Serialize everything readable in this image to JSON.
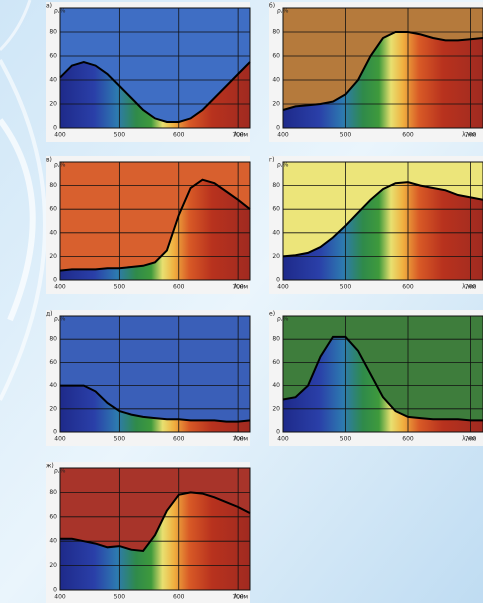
{
  "chart_data": [
    {
      "type": "line",
      "title": "а)",
      "ylabel": "ρ,%",
      "xlabel": "λ,нм",
      "background": "#3f6ec4",
      "color": "#000000",
      "x": [
        400,
        420,
        440,
        460,
        480,
        500,
        520,
        540,
        560,
        580,
        600,
        620,
        640,
        660,
        680,
        700,
        720
      ],
      "values": [
        42,
        52,
        55,
        52,
        45,
        35,
        25,
        15,
        8,
        5,
        5,
        8,
        15,
        25,
        35,
        45,
        55
      ],
      "xlim": [
        400,
        720
      ],
      "ylim": [
        0,
        100
      ],
      "xticks": [
        400,
        500,
        600,
        700
      ],
      "yticks": [
        0,
        20,
        40,
        60,
        80
      ],
      "grid": true
    },
    {
      "type": "line",
      "title": "б)",
      "ylabel": "ρ,%",
      "xlabel": "λ,нм",
      "background": "#b57a3c",
      "color": "#000000",
      "x": [
        400,
        420,
        440,
        460,
        480,
        500,
        520,
        540,
        560,
        580,
        600,
        620,
        640,
        660,
        680,
        700,
        720
      ],
      "values": [
        15,
        18,
        19,
        20,
        22,
        28,
        40,
        60,
        75,
        80,
        80,
        78,
        75,
        73,
        73,
        74,
        75
      ],
      "xlim": [
        400,
        720
      ],
      "ylim": [
        0,
        100
      ],
      "xticks": [
        400,
        500,
        600,
        700
      ],
      "yticks": [
        0,
        20,
        40,
        60,
        80
      ],
      "grid": true
    },
    {
      "type": "line",
      "title": "в)",
      "ylabel": "ρ,%",
      "xlabel": "λ,нм",
      "background": "#d8602e",
      "color": "#000000",
      "x": [
        400,
        420,
        440,
        460,
        480,
        500,
        520,
        540,
        560,
        580,
        600,
        620,
        640,
        660,
        680,
        700,
        720
      ],
      "values": [
        8,
        9,
        9,
        9,
        10,
        10,
        11,
        12,
        15,
        25,
        55,
        78,
        85,
        82,
        75,
        68,
        60
      ],
      "xlim": [
        400,
        720
      ],
      "ylim": [
        0,
        100
      ],
      "xticks": [
        400,
        500,
        600,
        700
      ],
      "yticks": [
        0,
        20,
        40,
        60,
        80
      ],
      "grid": true
    },
    {
      "type": "line",
      "title": "г)",
      "ylabel": "ρ,%",
      "xlabel": "λ,нм",
      "background": "#ece57a",
      "color": "#000000",
      "x": [
        400,
        420,
        440,
        460,
        480,
        500,
        520,
        540,
        560,
        580,
        600,
        620,
        640,
        660,
        680,
        700,
        720
      ],
      "values": [
        20,
        21,
        23,
        28,
        36,
        46,
        57,
        68,
        77,
        82,
        83,
        80,
        78,
        76,
        72,
        70,
        68
      ],
      "xlim": [
        400,
        720
      ],
      "ylim": [
        0,
        100
      ],
      "xticks": [
        400,
        500,
        600,
        700
      ],
      "yticks": [
        0,
        20,
        40,
        60,
        80
      ],
      "grid": true
    },
    {
      "type": "line",
      "title": "д)",
      "ylabel": "ρ,%",
      "xlabel": "λ,нм",
      "background": "#3a5fb8",
      "color": "#000000",
      "x": [
        400,
        420,
        440,
        460,
        480,
        500,
        520,
        540,
        560,
        580,
        600,
        620,
        640,
        660,
        680,
        700,
        720
      ],
      "values": [
        40,
        40,
        40,
        35,
        25,
        18,
        15,
        13,
        12,
        11,
        11,
        10,
        10,
        10,
        9,
        9,
        10
      ],
      "xlim": [
        400,
        720
      ],
      "ylim": [
        0,
        100
      ],
      "xticks": [
        400,
        500,
        600,
        700
      ],
      "yticks": [
        0,
        20,
        40,
        60,
        80
      ],
      "grid": true
    },
    {
      "type": "line",
      "title": "е)",
      "ylabel": "ρ,%",
      "xlabel": "λ,нм",
      "background": "#3e7d3c",
      "color": "#000000",
      "x": [
        400,
        420,
        440,
        460,
        480,
        500,
        520,
        540,
        560,
        580,
        600,
        620,
        640,
        660,
        680,
        700,
        720
      ],
      "values": [
        28,
        30,
        40,
        65,
        82,
        82,
        70,
        50,
        30,
        18,
        13,
        12,
        11,
        11,
        11,
        10,
        10
      ],
      "xlim": [
        400,
        720
      ],
      "ylim": [
        0,
        100
      ],
      "xticks": [
        400,
        500,
        600,
        700
      ],
      "yticks": [
        0,
        20,
        40,
        60,
        80
      ],
      "grid": true
    },
    {
      "type": "line",
      "title": "ж)",
      "ylabel": "ρ,%",
      "xlabel": "λ,нм",
      "background": "#a8342a",
      "color": "#000000",
      "x": [
        400,
        420,
        440,
        460,
        480,
        500,
        520,
        540,
        560,
        580,
        600,
        620,
        640,
        660,
        680,
        700,
        720
      ],
      "values": [
        42,
        42,
        40,
        38,
        35,
        36,
        33,
        32,
        45,
        65,
        78,
        80,
        79,
        76,
        72,
        68,
        63
      ],
      "xlim": [
        400,
        720
      ],
      "ylim": [
        0,
        100
      ],
      "xticks": [
        400,
        500,
        600,
        700
      ],
      "yticks": [
        0,
        20,
        40,
        60,
        80
      ],
      "grid": true
    }
  ]
}
